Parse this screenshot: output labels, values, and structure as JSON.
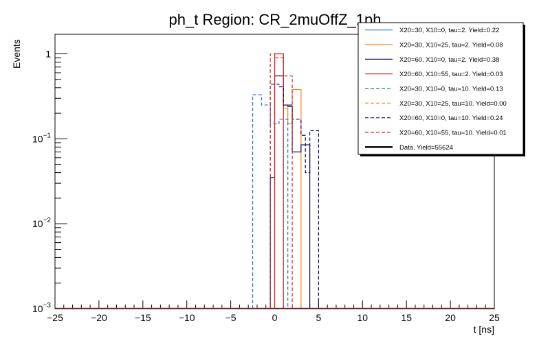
{
  "chart_data": {
    "type": "histogram",
    "title": "ph_t Region: CR_2muOffZ_1ph",
    "xlabel": "t [ns]",
    "ylabel": "Events",
    "xlim": [
      -25,
      25
    ],
    "ylim": [
      0.001,
      1.7
    ],
    "yscale": "log",
    "bin_width": 0.5,
    "x_ticks": [
      "−25",
      "−20",
      "−15",
      "−10",
      "−5",
      "0",
      "5",
      "10",
      "15",
      "20",
      "25"
    ],
    "y_ticks": [
      {
        "base": "1",
        "exp": ""
      },
      {
        "base": "10",
        "exp": "−1"
      },
      {
        "base": "10",
        "exp": "−2"
      },
      {
        "base": "10",
        "exp": "−3"
      }
    ],
    "legend_position": "top-right",
    "series": [
      {
        "name": "X20=30, X10=0, tau=2. Yield=0.22",
        "color": "#1f77b4",
        "dashed": false,
        "bins": []
      },
      {
        "name": "X20=30, X10=25, tau=2. Yield=0.08",
        "color": "#ff7f0e",
        "dashed": false,
        "bins": [
          [
            0.0,
            1.0
          ],
          [
            0.5,
            1.0
          ],
          [
            1.0,
            0.23
          ],
          [
            1.5,
            0.15
          ],
          [
            2.0,
            0.38
          ],
          [
            2.5,
            0.38
          ]
        ]
      },
      {
        "name": "X20=60, X10=0, tau=2. Yield=0.38",
        "color": "#0a0a6e",
        "dashed": false,
        "bins": [
          [
            -0.5,
            0.035
          ],
          [
            0.0,
            0.55
          ],
          [
            0.5,
            0.55
          ],
          [
            1.0,
            0.25
          ],
          [
            1.5,
            0.24
          ],
          [
            2.0,
            0.07
          ],
          [
            2.5,
            0.07
          ],
          [
            3.0,
            0.085
          ],
          [
            3.5,
            0.085
          ]
        ]
      },
      {
        "name": "X20=60, X10=55, tau=2. Yield=0.03",
        "color": "#d62728",
        "dashed": false,
        "bins": [
          [
            0.0,
            1.0
          ],
          [
            0.5,
            1.0
          ]
        ]
      },
      {
        "name": "X20=30, X10=0, tau=10. Yield=0.13",
        "color": "#1f77b4",
        "dashed": true,
        "bins": [
          [
            -2.5,
            0.33
          ],
          [
            -2.0,
            0.33
          ],
          [
            -1.5,
            0.25
          ],
          [
            -1.0,
            0.25
          ],
          [
            -0.5,
            0.15
          ],
          [
            0.0,
            0.15
          ],
          [
            0.5,
            0.17
          ],
          [
            1.0,
            0.17
          ]
        ]
      },
      {
        "name": "X20=30, X10=25, tau=10. Yield=0.00",
        "color": "#ff7f0e",
        "dashed": true,
        "bins": []
      },
      {
        "name": "X20=60, X10=0, tau=10. Yield=0.24",
        "color": "#0a0a6e",
        "dashed": true,
        "bins": [
          [
            -0.5,
            0.44
          ],
          [
            0.0,
            0.44
          ],
          [
            0.5,
            0.41
          ],
          [
            1.0,
            0.25
          ],
          [
            1.5,
            0.25
          ],
          [
            2.0,
            0.17
          ],
          [
            2.5,
            0.17
          ],
          [
            3.0,
            0.11
          ],
          [
            3.5,
            0.04
          ],
          [
            4.0,
            0.125
          ],
          [
            4.5,
            0.125
          ]
        ]
      },
      {
        "name": "X20=60, X10=55, tau=10. Yield=0.01",
        "color": "#d62728",
        "dashed": true,
        "bins": [
          [
            -0.5,
            1.0
          ],
          [
            0.0,
            0.9
          ],
          [
            0.5,
            0.9
          ],
          [
            1.0,
            0.55
          ],
          [
            1.5,
            0.55
          ]
        ]
      },
      {
        "name": "Data. Yield=55624",
        "color": "#000000",
        "dashed": false,
        "bold": true,
        "bins": []
      }
    ]
  }
}
